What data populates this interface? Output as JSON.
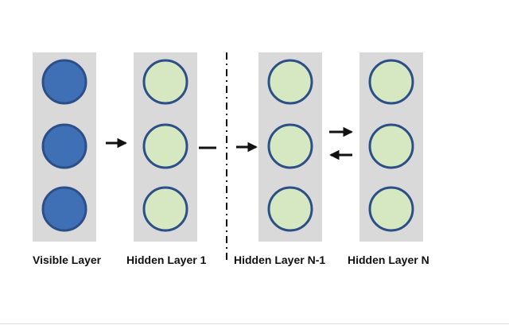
{
  "layers": [
    {
      "label": "Visible Layer",
      "node_count": 3,
      "node_fill": "#3f6fb5"
    },
    {
      "label": "Hidden Layer 1",
      "node_count": 3,
      "node_fill": "#d6e8c2"
    },
    {
      "label": "Hidden Layer N-1",
      "node_count": 3,
      "node_fill": "#d6e8c2"
    },
    {
      "label": "Hidden Layer N",
      "node_count": 3,
      "node_fill": "#d6e8c2"
    }
  ],
  "colors": {
    "panel": "#d9d9d9",
    "node_stroke": "#2b4f86",
    "arrow": "#111111",
    "separator": "#111111"
  }
}
